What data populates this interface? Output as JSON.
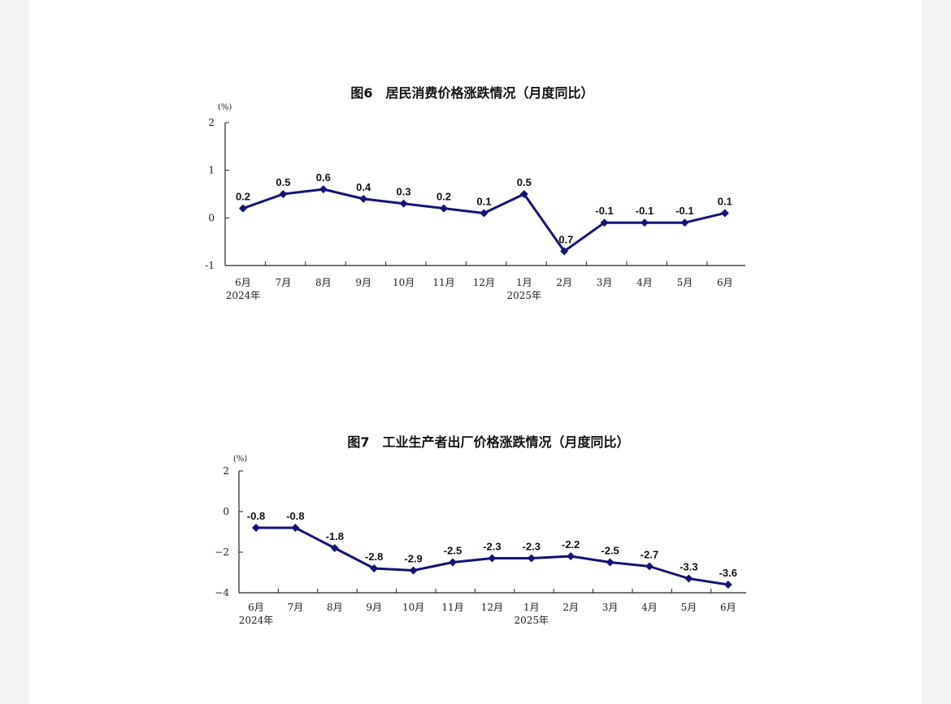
{
  "chart_data": [
    {
      "type": "line",
      "title": "图6　居民消费价格涨跌情况（月度同比）",
      "ylabel": "(%)",
      "categories": [
        "6月",
        "7月",
        "8月",
        "9月",
        "10月",
        "11月",
        "12月",
        "1月",
        "2月",
        "3月",
        "4月",
        "5月",
        "6月"
      ],
      "year_labels": [
        {
          "index": 0,
          "text": "2024年"
        },
        {
          "index": 7,
          "text": "2025年"
        }
      ],
      "series": [
        {
          "values": [
            0.2,
            0.5,
            0.6,
            0.4,
            0.3,
            0.2,
            0.1,
            0.5,
            -0.7,
            -0.1,
            -0.1,
            -0.1,
            0.1
          ]
        }
      ],
      "data_labels": [
        "0.2",
        "0.5",
        "0.6",
        "0.4",
        "0.3",
        "0.2",
        "0.1",
        "0.5",
        "-0.7",
        "-0.1",
        "-0.1",
        "-0.1",
        "0.1"
      ],
      "yticks": [
        2,
        1,
        0,
        -1
      ],
      "ytick_labels": [
        "2",
        "1",
        "0",
        "-1"
      ],
      "ylim": [
        -1,
        2
      ],
      "grid": false,
      "color": "#141478"
    },
    {
      "type": "line",
      "title": "图7　工业生产者出厂价格涨跌情况（月度同比）",
      "ylabel": "(%)",
      "categories": [
        "6月",
        "7月",
        "8月",
        "9月",
        "10月",
        "11月",
        "12月",
        "1月",
        "2月",
        "3月",
        "4月",
        "5月",
        "6月"
      ],
      "year_labels": [
        {
          "index": 0,
          "text": "2024年"
        },
        {
          "index": 7,
          "text": "2025年"
        }
      ],
      "series": [
        {
          "values": [
            -0.8,
            -0.8,
            -1.8,
            -2.8,
            -2.9,
            -2.5,
            -2.3,
            -2.3,
            -2.2,
            -2.5,
            -2.7,
            -3.3,
            -3.6
          ]
        }
      ],
      "data_labels": [
        "-0.8",
        "-0.8",
        "-1.8",
        "-2.8",
        "-2.9",
        "-2.5",
        "-2.3",
        "-2.3",
        "-2.2",
        "-2.5",
        "-2.7",
        "-3.3",
        "-3.6"
      ],
      "yticks": [
        2,
        0,
        -2,
        -4
      ],
      "ytick_labels": [
        "2",
        "0",
        "−2",
        "−4"
      ],
      "ylim": [
        -4,
        2
      ],
      "grid": false,
      "color": "#141478"
    }
  ]
}
